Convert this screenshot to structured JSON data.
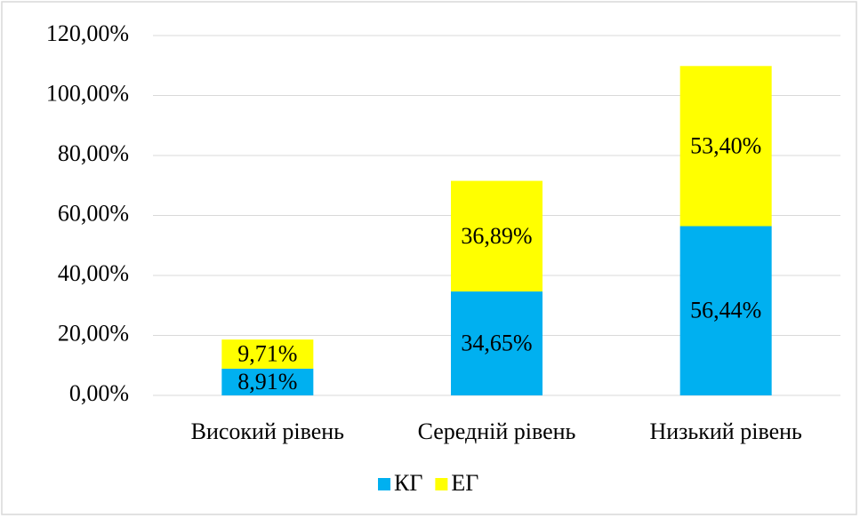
{
  "chart_data": {
    "type": "stacked_bar",
    "categories": [
      "Високий рівень",
      "Середній рівень",
      "Низький рівень"
    ],
    "series": [
      {
        "name": "КГ",
        "color": "#00b0f0",
        "values": [
          8.91,
          34.65,
          56.44
        ],
        "value_labels": [
          "8,91%",
          "34,65%",
          "56,44%"
        ]
      },
      {
        "name": "ЕГ",
        "color": "#ffff00",
        "values": [
          9.71,
          36.89,
          53.4
        ],
        "value_labels": [
          "9,71%",
          "36,89%",
          "53,40%"
        ]
      }
    ],
    "ylim": [
      0,
      120
    ],
    "yticks": [
      {
        "value": 0,
        "label": "0,00%"
      },
      {
        "value": 20,
        "label": "20,00%"
      },
      {
        "value": 40,
        "label": "40,00%"
      },
      {
        "value": 60,
        "label": "60,00%"
      },
      {
        "value": 80,
        "label": "80,00%"
      },
      {
        "value": 100,
        "label": "100,00%"
      },
      {
        "value": 120,
        "label": "120,00%"
      }
    ],
    "grid": true,
    "legend": "bottom"
  }
}
